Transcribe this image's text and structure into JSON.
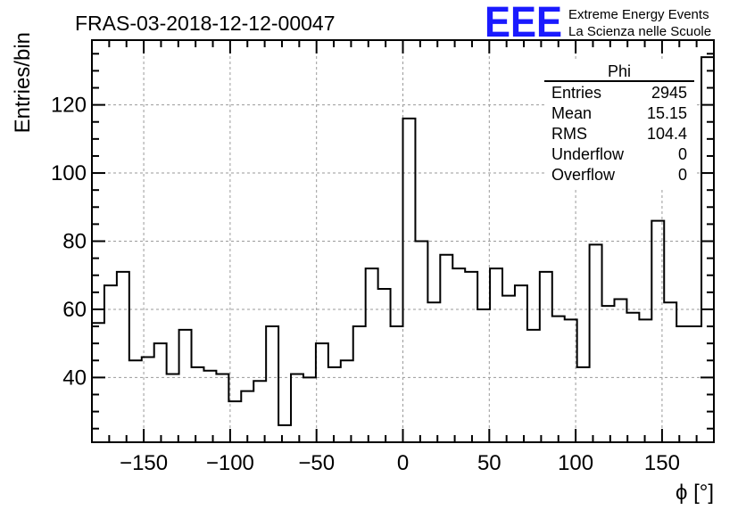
{
  "chart_data": {
    "type": "histogram",
    "title": "FRAS-03-2018-12-12-00047",
    "xlabel": "ϕ [°]",
    "ylabel": "Entries/bin",
    "xlim": [
      -180,
      180
    ],
    "ylim": [
      21,
      139
    ],
    "grid": true,
    "bin_width": 7.2,
    "x_ticks": [
      -150,
      -100,
      -50,
      0,
      50,
      100,
      150
    ],
    "x_tick_labels": [
      "−150",
      "−100",
      "−50",
      "0",
      "50",
      "100",
      "150"
    ],
    "y_ticks": [
      40,
      60,
      80,
      100,
      120
    ],
    "y_tick_labels": [
      "40",
      "60",
      "80",
      "100",
      "120"
    ],
    "values": [
      56,
      67,
      71,
      45,
      46,
      50,
      41,
      54,
      43,
      42,
      41,
      33,
      36,
      39,
      55,
      26,
      41,
      40,
      50,
      43,
      45,
      55,
      72,
      66,
      55,
      116,
      80,
      62,
      76,
      72,
      71,
      60,
      72,
      64,
      67,
      54,
      71,
      58,
      57,
      43,
      79,
      61,
      63,
      59,
      57,
      86,
      62,
      55,
      55,
      134
    ],
    "stats": {
      "title": "Phi",
      "rows": [
        {
          "label": "Entries",
          "value": "2945"
        },
        {
          "label": "Mean",
          "value": "15.15"
        },
        {
          "label": "RMS",
          "value": "104.4"
        },
        {
          "label": "Underflow",
          "value": "0"
        },
        {
          "label": "Overflow",
          "value": "0"
        }
      ]
    }
  },
  "logo": {
    "text": "EEE",
    "line1": "Extreme Energy Events",
    "line2": "La Scienza nelle Scuole",
    "color": "#1a1aff"
  },
  "colors": {
    "line": "#000000",
    "grid": "#9a9a9a"
  }
}
